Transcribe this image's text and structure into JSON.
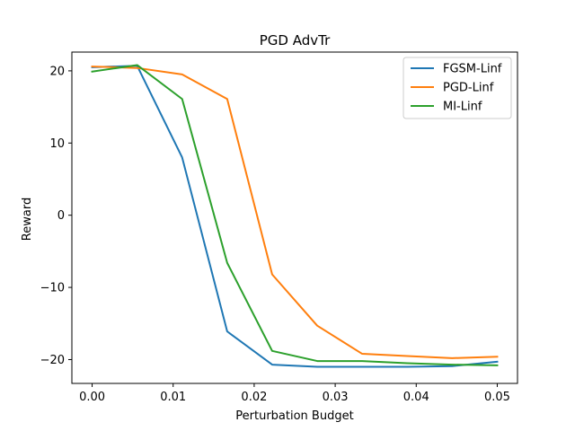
{
  "chart_data": {
    "type": "line",
    "title": "PGD AdvTr",
    "xlabel": "Perturbation Budget",
    "ylabel": "Reward",
    "xlim": [
      -0.0025,
      0.0525
    ],
    "ylim": [
      -23.3,
      22.6
    ],
    "xticks": [
      0.0,
      0.01,
      0.02,
      0.03,
      0.04,
      0.05
    ],
    "xtick_labels": [
      "0.00",
      "0.01",
      "0.02",
      "0.03",
      "0.04",
      "0.05"
    ],
    "yticks": [
      -20,
      -10,
      0,
      10,
      20
    ],
    "ytick_labels": [
      "−20",
      "−10",
      "0",
      "10",
      "20"
    ],
    "grid": false,
    "legend_position": "top-right",
    "series": [
      {
        "name": "FGSM-Linf",
        "color": "#1f77b4",
        "x": [
          0.0,
          0.00556,
          0.01111,
          0.01667,
          0.02222,
          0.02778,
          0.03333,
          0.03889,
          0.04444,
          0.05
        ],
        "y": [
          20.5,
          20.7,
          8.0,
          -16.1,
          -20.7,
          -21.0,
          -21.0,
          -21.0,
          -20.9,
          -20.3
        ]
      },
      {
        "name": "PGD-Linf",
        "color": "#ff7f0e",
        "x": [
          0.0,
          0.00556,
          0.01111,
          0.01667,
          0.02222,
          0.02778,
          0.03333,
          0.03889,
          0.04444,
          0.05
        ],
        "y": [
          20.6,
          20.4,
          19.5,
          16.1,
          -8.2,
          -15.3,
          -19.2,
          -19.5,
          -19.8,
          -19.6
        ]
      },
      {
        "name": "MI-Linf",
        "color": "#2ca02c",
        "x": [
          0.0,
          0.00556,
          0.01111,
          0.01667,
          0.02222,
          0.02778,
          0.03333,
          0.03889,
          0.04444,
          0.05
        ],
        "y": [
          19.9,
          20.8,
          16.1,
          -6.6,
          -18.8,
          -20.2,
          -20.2,
          -20.5,
          -20.7,
          -20.8
        ]
      }
    ]
  }
}
